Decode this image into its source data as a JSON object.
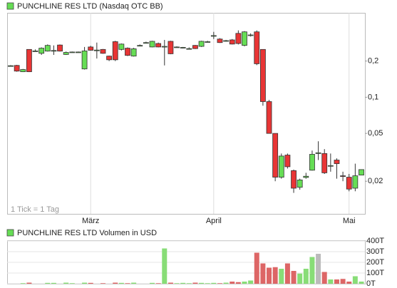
{
  "chart_data": [
    {
      "type": "candlestick",
      "title": "PUNCHLINE RES LTD (Nasdaq OTC BB)",
      "annotation": "1 Tick = 1 Tag",
      "categories": [
        null,
        null,
        null,
        null,
        null,
        null,
        null,
        null,
        null,
        null,
        null,
        null,
        null,
        "März",
        null,
        null,
        null,
        null,
        null,
        null,
        null,
        null,
        null,
        null,
        null,
        null,
        null,
        null,
        null,
        null,
        null,
        null,
        null,
        "April",
        null,
        null,
        null,
        null,
        null,
        null,
        null,
        null,
        null,
        null,
        null,
        null,
        null,
        null,
        null,
        null,
        null,
        null,
        null,
        null,
        null,
        "Mai",
        null,
        null
      ],
      "open": [
        0.183,
        0.184,
        0.163,
        0.25,
        0.243,
        0.232,
        0.242,
        0.245,
        0.272,
        0.227,
        0.238,
        0.238,
        0.172,
        0.262,
        0.247,
        0.25,
        0.22,
        0.29,
        0.25,
        0.256,
        0.22,
        0.27,
        0.285,
        0.262,
        0.28,
        0.265,
        0.292,
        0.262,
        0.26,
        0.254,
        0.27,
        0.265,
        0.29,
        0.326,
        0.305,
        0.296,
        0.3,
        0.34,
        0.27,
        0.33,
        0.35,
        0.25,
        0.092,
        0.05,
        0.0216,
        0.033,
        0.0245,
        0.0178,
        0.0215,
        0.0247,
        0.034,
        0.034,
        0.027,
        0.03,
        0.0222,
        0.0216,
        0.0175,
        0.0225
      ],
      "high": [
        0.185,
        0.186,
        0.172,
        0.25,
        0.25,
        0.26,
        0.275,
        0.27,
        0.275,
        0.24,
        0.24,
        0.24,
        0.262,
        0.268,
        0.285,
        0.252,
        0.222,
        0.295,
        0.28,
        0.26,
        0.258,
        0.275,
        0.29,
        0.295,
        0.285,
        0.3,
        0.295,
        0.265,
        0.262,
        0.26,
        0.272,
        0.295,
        0.295,
        0.35,
        0.31,
        0.3,
        0.305,
        0.36,
        0.355,
        0.34,
        0.36,
        0.25,
        0.095,
        0.05,
        0.034,
        0.034,
        0.025,
        0.021,
        0.0235,
        0.036,
        0.043,
        0.037,
        0.034,
        0.031,
        0.024,
        0.023,
        0.028,
        0.025
      ],
      "low": [
        0.181,
        0.163,
        0.162,
        0.162,
        0.24,
        0.225,
        0.24,
        0.225,
        0.24,
        0.225,
        0.235,
        0.236,
        0.17,
        0.244,
        0.21,
        0.23,
        0.2,
        0.2,
        0.245,
        0.22,
        0.218,
        0.265,
        0.28,
        0.26,
        0.26,
        0.184,
        0.228,
        0.26,
        0.255,
        0.25,
        0.252,
        0.262,
        0.285,
        0.305,
        0.283,
        0.29,
        0.275,
        0.275,
        0.265,
        0.32,
        0.185,
        0.085,
        0.05,
        0.02,
        0.021,
        0.0255,
        0.016,
        0.017,
        0.021,
        0.0245,
        0.03,
        0.023,
        0.024,
        0.021,
        0.02,
        0.0165,
        0.0165,
        0.0225
      ],
      "close": [
        0.183,
        0.165,
        0.17,
        0.163,
        0.243,
        0.256,
        0.27,
        0.245,
        0.242,
        0.236,
        0.238,
        0.238,
        0.243,
        0.246,
        0.247,
        0.232,
        0.205,
        0.205,
        0.277,
        0.223,
        0.253,
        0.27,
        0.285,
        0.292,
        0.262,
        0.265,
        0.23,
        0.262,
        0.26,
        0.254,
        0.254,
        0.292,
        0.29,
        0.326,
        0.285,
        0.296,
        0.277,
        0.28,
        0.35,
        0.33,
        0.19,
        0.092,
        0.05,
        0.0216,
        0.0324,
        0.0264,
        0.0175,
        0.0205,
        0.022,
        0.0335,
        0.0345,
        0.0235,
        0.027,
        0.028,
        0.022,
        0.0172,
        0.0222,
        0.025
      ],
      "up_color": "#66dd55",
      "down_color": "#e83535",
      "ylim": [
        0.0107,
        0.504
      ],
      "log_scale": true,
      "yticks": [
        {
          "value": 0.02,
          "label": "0,02"
        },
        {
          "value": 0.05,
          "label": "0,05"
        },
        {
          "value": 0.1,
          "label": "0,1"
        },
        {
          "value": 0.2,
          "label": "0,2"
        }
      ],
      "grid_x": true
    },
    {
      "type": "bar",
      "title": "PUNCHLINE RES LTD Volumen in USD",
      "values": [
        0,
        0,
        5000,
        10000,
        0,
        0,
        8000,
        8000,
        0,
        10000,
        5000,
        0,
        10000,
        8000,
        0,
        5000,
        0,
        10000,
        8000,
        5000,
        10000,
        0,
        0,
        8000,
        5000,
        330000,
        10000,
        5000,
        8000,
        5000,
        10000,
        8000,
        5000,
        8000,
        5000,
        10000,
        20000,
        15000,
        20000,
        30000,
        290000,
        190000,
        150000,
        155000,
        140000,
        190000,
        120000,
        95000,
        140000,
        250000,
        280000,
        110000,
        40000,
        40000,
        45000,
        20000,
        70000,
        20000
      ],
      "colors": [
        "#88dd77",
        "#dd6666",
        "#88dd77",
        "#dd6666",
        "#88dd77",
        "#88dd77",
        "#88dd77",
        "#88dd77",
        "#dd6666",
        "#88dd77",
        "#88dd77",
        "#88dd77",
        "#88dd77",
        "#dd6666",
        "#88dd77",
        "#dd6666",
        "#dd6666",
        "#dd6666",
        "#88dd77",
        "#dd6666",
        "#88dd77",
        "#88dd77",
        "#88dd77",
        "#88dd77",
        "#dd6666",
        "#88dd77",
        "#dd6666",
        "#88dd77",
        "#88dd77",
        "#88dd77",
        "#dd6666",
        "#88dd77",
        "#88dd77",
        "#88dd77",
        "#dd6666",
        "#88dd77",
        "#dd6666",
        "#dd6666",
        "#88dd77",
        "#88dd77",
        "#dd6666",
        "#dd6666",
        "#dd6666",
        "#dd6666",
        "#88dd77",
        "#dd6666",
        "#dd6666",
        "#88dd77",
        "#88dd77",
        "#88dd77",
        "#bbbbbb",
        "#dd6666",
        "#88dd77",
        "#dd6666",
        "#dd6666",
        "#dd6666",
        "#88dd77",
        "#88dd77"
      ],
      "ylim": [
        0,
        400000
      ],
      "yticks": [
        {
          "value": 0,
          "label": "0T"
        },
        {
          "value": 100000,
          "label": "100T"
        },
        {
          "value": 200000,
          "label": "200T"
        },
        {
          "value": 300000,
          "label": "300T"
        },
        {
          "value": 400000,
          "label": "400T"
        }
      ],
      "grid": true
    }
  ]
}
